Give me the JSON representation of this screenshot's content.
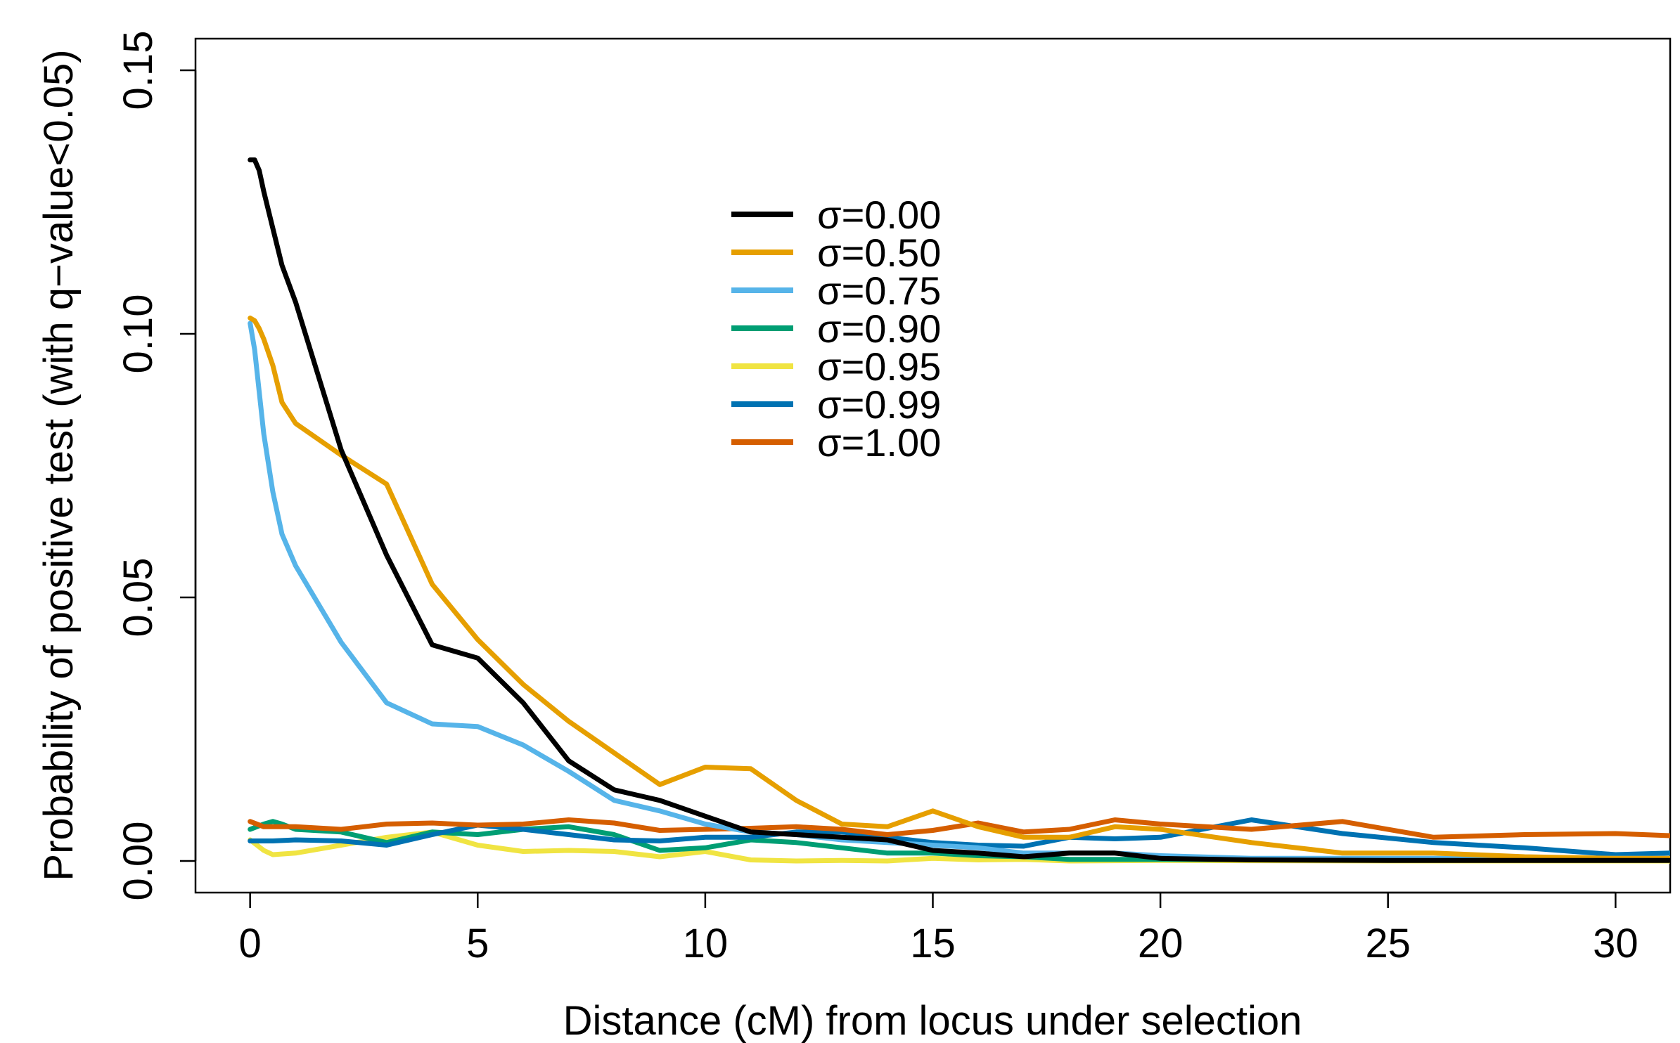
{
  "chart_data": {
    "type": "line",
    "title": "",
    "xlabel": "Distance (cM) from locus under selection",
    "ylabel": "Probability of positive test (with q−value<0.05)",
    "xlim": [
      -1.2,
      31.2
    ],
    "ylim": [
      -0.006,
      0.156
    ],
    "xticks": [
      0,
      5,
      10,
      15,
      20,
      25,
      30
    ],
    "xtick_labels": [
      "0",
      "5",
      "10",
      "15",
      "20",
      "25",
      "30"
    ],
    "yticks": [
      0.0,
      0.05,
      0.1,
      0.15
    ],
    "ytick_labels": [
      "0.00",
      "0.05",
      "0.10",
      "0.15"
    ],
    "grid": false,
    "legend_position": "top-center",
    "series": [
      {
        "name": "σ=0.00",
        "color": "#000000",
        "points": [
          [
            0,
            0.133
          ],
          [
            0.1,
            0.133
          ],
          [
            0.2,
            0.131
          ],
          [
            0.3,
            0.127
          ],
          [
            0.5,
            0.12
          ],
          [
            0.7,
            0.113
          ],
          [
            1,
            0.106
          ],
          [
            2,
            0.078
          ],
          [
            3,
            0.058
          ],
          [
            4,
            0.041
          ],
          [
            5,
            0.0385
          ],
          [
            6,
            0.03
          ],
          [
            7,
            0.019
          ],
          [
            8,
            0.0135
          ],
          [
            9,
            0.0115
          ],
          [
            10,
            0.0085
          ],
          [
            11,
            0.0055
          ],
          [
            12,
            0.005
          ],
          [
            13,
            0.0045
          ],
          [
            14,
            0.004
          ],
          [
            15,
            0.002
          ],
          [
            16,
            0.0015
          ],
          [
            17,
            0.0008
          ],
          [
            18,
            0.0015
          ],
          [
            19,
            0.0015
          ],
          [
            20,
            0.0005
          ],
          [
            22,
            0.0002
          ],
          [
            25,
            0.0001
          ],
          [
            30,
            0.0001
          ],
          [
            31.2,
            0.0001
          ]
        ]
      },
      {
        "name": "σ=0.50",
        "color": "#E69F00",
        "points": [
          [
            0,
            0.103
          ],
          [
            0.1,
            0.1025
          ],
          [
            0.2,
            0.101
          ],
          [
            0.3,
            0.099
          ],
          [
            0.5,
            0.094
          ],
          [
            0.7,
            0.087
          ],
          [
            1,
            0.083
          ],
          [
            2,
            0.077
          ],
          [
            3,
            0.0715
          ],
          [
            4,
            0.0525
          ],
          [
            5,
            0.042
          ],
          [
            6,
            0.0335
          ],
          [
            7,
            0.0265
          ],
          [
            8,
            0.0205
          ],
          [
            9,
            0.0145
          ],
          [
            10,
            0.0178
          ],
          [
            11,
            0.0175
          ],
          [
            12,
            0.0115
          ],
          [
            13,
            0.007
          ],
          [
            14,
            0.0065
          ],
          [
            15,
            0.0095
          ],
          [
            16,
            0.0065
          ],
          [
            17,
            0.0045
          ],
          [
            18,
            0.0045
          ],
          [
            19,
            0.0065
          ],
          [
            20,
            0.006
          ],
          [
            22,
            0.0035
          ],
          [
            24,
            0.0015
          ],
          [
            26,
            0.0015
          ],
          [
            28,
            0.0008
          ],
          [
            30,
            0.0005
          ],
          [
            31.2,
            0.0005
          ]
        ]
      },
      {
        "name": "σ=0.75",
        "color": "#56B4E9",
        "points": [
          [
            0,
            0.102
          ],
          [
            0.1,
            0.097
          ],
          [
            0.2,
            0.089
          ],
          [
            0.3,
            0.081
          ],
          [
            0.5,
            0.07
          ],
          [
            0.7,
            0.062
          ],
          [
            1,
            0.056
          ],
          [
            2,
            0.0415
          ],
          [
            3,
            0.03
          ],
          [
            4,
            0.026
          ],
          [
            5,
            0.0255
          ],
          [
            6,
            0.022
          ],
          [
            7,
            0.017
          ],
          [
            8,
            0.0115
          ],
          [
            9,
            0.0095
          ],
          [
            10,
            0.007
          ],
          [
            11,
            0.0055
          ],
          [
            12,
            0.005
          ],
          [
            13,
            0.004
          ],
          [
            14,
            0.0035
          ],
          [
            15,
            0.003
          ],
          [
            16,
            0.0025
          ],
          [
            17,
            0.0015
          ],
          [
            18,
            0.0015
          ],
          [
            19,
            0.0015
          ],
          [
            20,
            0.001
          ],
          [
            22,
            0.0005
          ],
          [
            25,
            0.0005
          ],
          [
            30,
            0.0005
          ],
          [
            31.2,
            0.0005
          ]
        ]
      },
      {
        "name": "σ=0.90",
        "color": "#009E73",
        "points": [
          [
            0,
            0.006
          ],
          [
            0.3,
            0.007
          ],
          [
            0.5,
            0.0075
          ],
          [
            0.7,
            0.007
          ],
          [
            1,
            0.006
          ],
          [
            2,
            0.0055
          ],
          [
            3,
            0.0035
          ],
          [
            4,
            0.0055
          ],
          [
            5,
            0.005
          ],
          [
            6,
            0.006
          ],
          [
            7,
            0.0065
          ],
          [
            8,
            0.005
          ],
          [
            9,
            0.002
          ],
          [
            10,
            0.0025
          ],
          [
            11,
            0.004
          ],
          [
            12,
            0.0035
          ],
          [
            13,
            0.0025
          ],
          [
            14,
            0.0015
          ],
          [
            15,
            0.0015
          ],
          [
            16,
            0.001
          ],
          [
            17,
            0.0008
          ],
          [
            18,
            0.0003
          ],
          [
            19,
            0.0003
          ],
          [
            20,
            0.0003
          ],
          [
            25,
            0.0002
          ],
          [
            30,
            0.0002
          ],
          [
            31.2,
            0.0002
          ]
        ]
      },
      {
        "name": "σ=0.95",
        "color": "#F0E442",
        "points": [
          [
            0,
            0.004
          ],
          [
            0.3,
            0.002
          ],
          [
            0.5,
            0.0012
          ],
          [
            1,
            0.0015
          ],
          [
            2,
            0.003
          ],
          [
            3,
            0.0045
          ],
          [
            4,
            0.0055
          ],
          [
            5,
            0.003
          ],
          [
            6,
            0.0018
          ],
          [
            7,
            0.002
          ],
          [
            8,
            0.0018
          ],
          [
            9,
            0.0008
          ],
          [
            10,
            0.0018
          ],
          [
            11,
            0.0002
          ],
          [
            12,
            0.0
          ],
          [
            13,
            0.0001
          ],
          [
            14,
            0.0
          ],
          [
            15,
            0.0005
          ],
          [
            16,
            0.0002
          ],
          [
            17,
            0.0003
          ],
          [
            18,
            0.0
          ],
          [
            20,
            0.0001
          ],
          [
            25,
            0.0
          ],
          [
            30,
            0.0
          ],
          [
            31.2,
            0.0
          ]
        ]
      },
      {
        "name": "σ=0.99",
        "color": "#0072B2",
        "points": [
          [
            0,
            0.0038
          ],
          [
            0.5,
            0.0038
          ],
          [
            1,
            0.004
          ],
          [
            2,
            0.0038
          ],
          [
            3,
            0.003
          ],
          [
            4,
            0.005
          ],
          [
            5,
            0.0068
          ],
          [
            6,
            0.006
          ],
          [
            7,
            0.005
          ],
          [
            8,
            0.004
          ],
          [
            9,
            0.0038
          ],
          [
            10,
            0.0045
          ],
          [
            11,
            0.0045
          ],
          [
            12,
            0.0055
          ],
          [
            13,
            0.0055
          ],
          [
            14,
            0.0045
          ],
          [
            15,
            0.0035
          ],
          [
            16,
            0.003
          ],
          [
            17,
            0.0028
          ],
          [
            18,
            0.0045
          ],
          [
            19,
            0.0042
          ],
          [
            20,
            0.0045
          ],
          [
            22,
            0.0078
          ],
          [
            24,
            0.0052
          ],
          [
            26,
            0.0035
          ],
          [
            28,
            0.0025
          ],
          [
            30,
            0.0012
          ],
          [
            31.2,
            0.0015
          ]
        ]
      },
      {
        "name": "σ=1.00",
        "color": "#D55E00",
        "points": [
          [
            0,
            0.0075
          ],
          [
            0.3,
            0.0065
          ],
          [
            1,
            0.0065
          ],
          [
            2,
            0.006
          ],
          [
            3,
            0.007
          ],
          [
            4,
            0.0072
          ],
          [
            5,
            0.0068
          ],
          [
            6,
            0.007
          ],
          [
            7,
            0.0078
          ],
          [
            8,
            0.0072
          ],
          [
            9,
            0.0058
          ],
          [
            10,
            0.006
          ],
          [
            11,
            0.0062
          ],
          [
            12,
            0.0065
          ],
          [
            13,
            0.006
          ],
          [
            14,
            0.005
          ],
          [
            15,
            0.0058
          ],
          [
            16,
            0.0072
          ],
          [
            17,
            0.0055
          ],
          [
            18,
            0.006
          ],
          [
            19,
            0.0078
          ],
          [
            20,
            0.007
          ],
          [
            22,
            0.006
          ],
          [
            24,
            0.0075
          ],
          [
            26,
            0.0045
          ],
          [
            28,
            0.005
          ],
          [
            30,
            0.0052
          ],
          [
            31.2,
            0.0048
          ]
        ]
      }
    ]
  }
}
